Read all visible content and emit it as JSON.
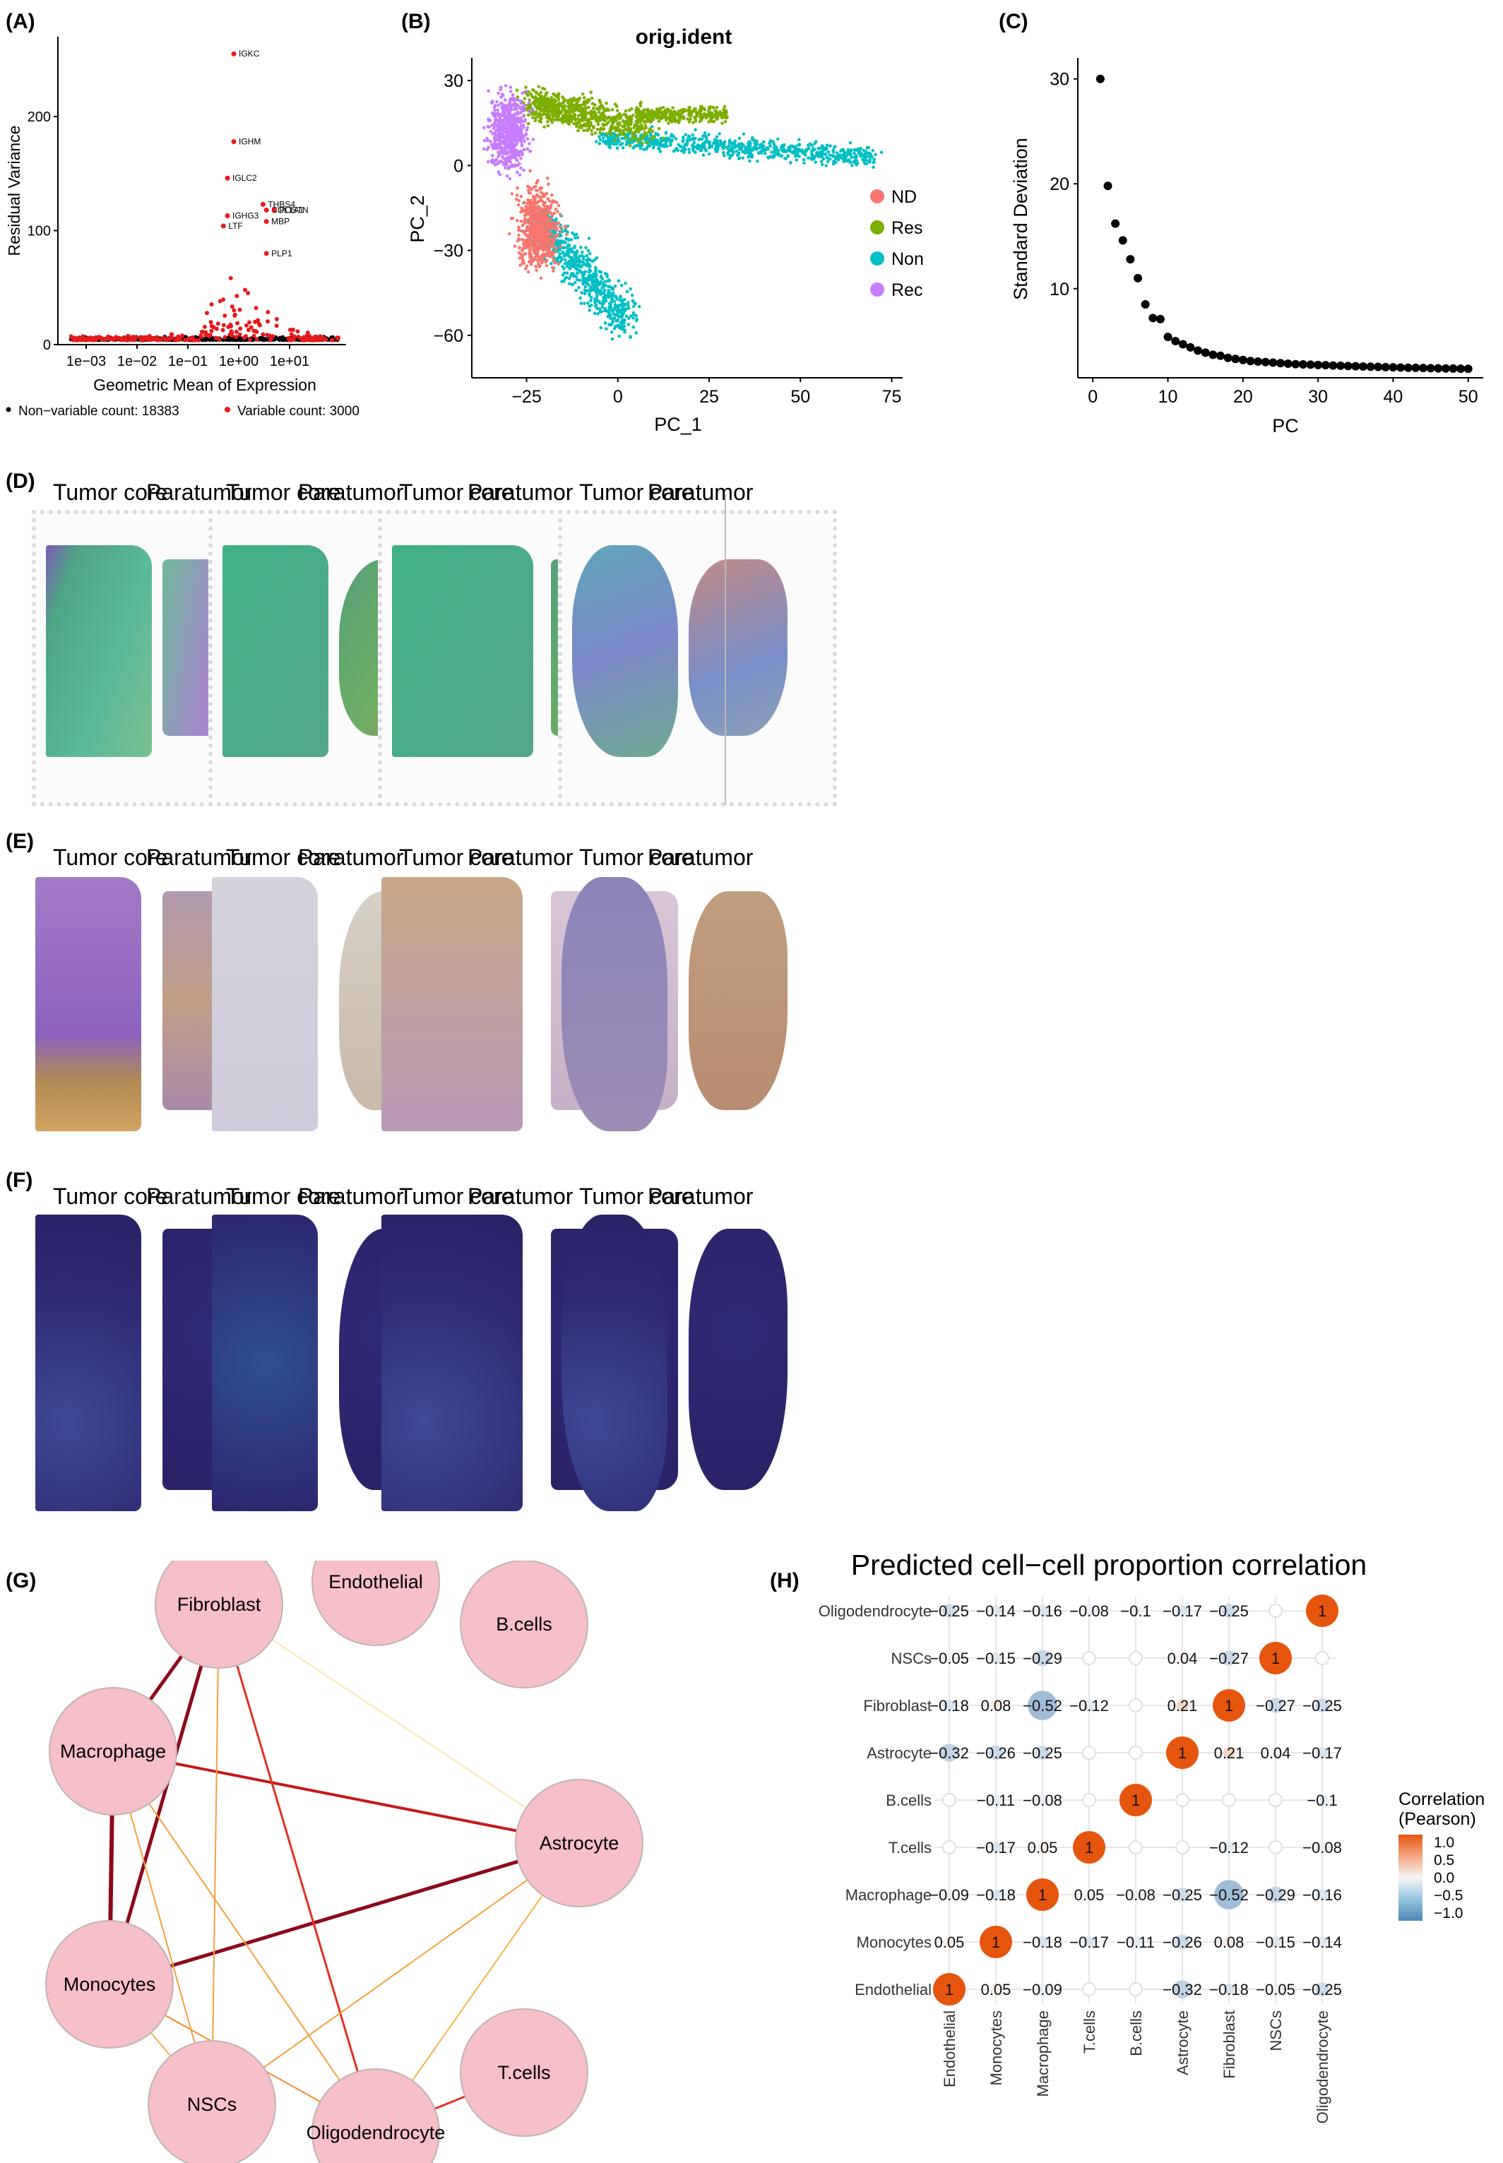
{
  "panels": {
    "A": "(A)",
    "B": "(B)",
    "C": "(C)",
    "D": "(D)",
    "E": "(E)",
    "F": "(F)",
    "G": "(G)",
    "H": "(H)"
  },
  "panelA": {
    "ylabel": "Residual Variance",
    "xlabel": "Geometric Mean of Expression",
    "yticks": [
      "0",
      "100",
      "200"
    ],
    "xticks": [
      "1e−03",
      "1e−02",
      "1e−01",
      "1e+00",
      "1e+01"
    ],
    "legend_nonvar": "Non−variable count: 18383",
    "legend_var": "Variable count: 3000",
    "genes": [
      "IGKC",
      "IGHM",
      "IGLC2",
      "THBS4",
      "IGHG3",
      "COL1A1",
      "POSTN",
      "LTF",
      "MBP",
      "PLP1"
    ]
  },
  "panelB": {
    "title": "orig.ident",
    "xlabel": "PC_1",
    "ylabel": "PC_2",
    "xticks": [
      "−25",
      "0",
      "25",
      "50",
      "75"
    ],
    "yticks": [
      "30",
      "0",
      "−30",
      "−60"
    ],
    "legend": [
      {
        "name": "ND",
        "color": "#F8766D"
      },
      {
        "name": "Res",
        "color": "#7CAE00"
      },
      {
        "name": "Non",
        "color": "#00BFC4"
      },
      {
        "name": "Rec",
        "color": "#C77CFF"
      }
    ]
  },
  "panelC": {
    "xlabel": "PC",
    "ylabel": "Standard Deviation",
    "xticks": [
      "0",
      "10",
      "20",
      "30",
      "40",
      "50"
    ],
    "yticks": [
      "10",
      "20",
      "30"
    ]
  },
  "tissue_labels": {
    "tumor": "Tumor core",
    "para": "Paratumor"
  },
  "panelG": {
    "nodes": [
      "Fibroblast",
      "Endothelial",
      "B.cells",
      "Macrophage",
      "Astrocyte",
      "Monocytes",
      "T.cells",
      "NSCs",
      "Oligodendrocyte"
    ]
  },
  "panelH": {
    "title": "Predicted cell−cell proportion correlation",
    "legend_title_1": "Correlation",
    "legend_title_2": "(Pearson)",
    "legend_ticks": [
      "1.0",
      "0.5",
      "0.0",
      "−0.5",
      "−1.0"
    ]
  },
  "chart_data": [
    {
      "type": "scatter",
      "panel": "A",
      "xlabel": "Geometric Mean of Expression",
      "ylabel": "Residual Variance",
      "xscale": "log",
      "ylim": [
        0,
        260
      ],
      "labeled_points": [
        {
          "gene": "IGKC",
          "x": 0.8,
          "y": 255
        },
        {
          "gene": "IGHM",
          "x": 0.8,
          "y": 178
        },
        {
          "gene": "IGLC2",
          "x": 0.6,
          "y": 146
        },
        {
          "gene": "THBS4",
          "x": 3,
          "y": 123
        },
        {
          "gene": "IGHG3",
          "x": 0.6,
          "y": 113
        },
        {
          "gene": "COL1A1",
          "x": 3.5,
          "y": 118
        },
        {
          "gene": "POSTN",
          "x": 5,
          "y": 118
        },
        {
          "gene": "LTF",
          "x": 0.5,
          "y": 104
        },
        {
          "gene": "MBP",
          "x": 3.5,
          "y": 108
        },
        {
          "gene": "PLP1",
          "x": 3.5,
          "y": 80
        }
      ]
    },
    {
      "type": "scatter",
      "panel": "B",
      "title": "orig.ident",
      "xlabel": "PC_1",
      "ylabel": "PC_2",
      "xlim": [
        -40,
        78
      ],
      "ylim": [
        -75,
        38
      ],
      "series": [
        {
          "name": "ND",
          "center": [
            -22,
            -25
          ]
        },
        {
          "name": "Res",
          "center": [
            -5,
            18
          ]
        },
        {
          "name": "Non",
          "center": [
            40,
            2
          ]
        },
        {
          "name": "Rec",
          "center": [
            -30,
            15
          ]
        }
      ]
    },
    {
      "type": "scatter",
      "panel": "C",
      "xlabel": "PC",
      "ylabel": "Standard Deviation",
      "xlim": [
        0,
        52
      ],
      "ylim": [
        1.5,
        32
      ],
      "x": [
        1,
        2,
        3,
        4,
        5,
        6,
        7,
        8,
        9,
        10,
        11,
        12,
        13,
        14,
        15,
        16,
        17,
        18,
        19,
        20,
        21,
        22,
        23,
        24,
        25,
        26,
        27,
        28,
        29,
        30,
        31,
        32,
        33,
        34,
        35,
        36,
        37,
        38,
        39,
        40,
        41,
        42,
        43,
        44,
        45,
        46,
        47,
        48,
        49,
        50
      ],
      "y": [
        30.0,
        19.8,
        16.2,
        14.6,
        12.8,
        11.0,
        8.5,
        7.2,
        7.1,
        5.4,
        5.0,
        4.7,
        4.4,
        4.1,
        3.9,
        3.7,
        3.6,
        3.4,
        3.3,
        3.2,
        3.1,
        3.05,
        3.0,
        2.95,
        2.9,
        2.85,
        2.8,
        2.78,
        2.75,
        2.72,
        2.7,
        2.67,
        2.65,
        2.62,
        2.6,
        2.58,
        2.56,
        2.54,
        2.52,
        2.5,
        2.48,
        2.46,
        2.45,
        2.43,
        2.42,
        2.4,
        2.39,
        2.38,
        2.37,
        2.36
      ]
    },
    {
      "type": "heatmap",
      "panel": "H",
      "rows": [
        "Oligodendrocyte",
        "NSCs",
        "Fibroblast",
        "Astrocyte",
        "B.cells",
        "T.cells",
        "Macrophage",
        "Monocytes",
        "Endothelial"
      ],
      "columns": [
        "Endothelial",
        "Monocytes",
        "Macrophage",
        "T.cells",
        "B.cells",
        "Astrocyte",
        "Fibroblast",
        "NSCs",
        "Oligodendrocyte"
      ],
      "values": [
        [
          "−0.25",
          "−0.14",
          "−0.16",
          "−0.08",
          "−0.1",
          "−0.17",
          "−0.25",
          "",
          "1"
        ],
        [
          "−0.05",
          "−0.15",
          "−0.29",
          "",
          "",
          "0.04",
          "−0.27",
          "1",
          ""
        ],
        [
          "−0.18",
          "0.08",
          "−0.52",
          "−0.12",
          "",
          "0.21",
          "1",
          "−0.27",
          "−0.25"
        ],
        [
          "−0.32",
          "−0.26",
          "−0.25",
          "",
          "",
          "1",
          "0.21",
          "0.04",
          "−0.17"
        ],
        [
          "",
          "−0.11",
          "−0.08",
          "",
          "1",
          "",
          "",
          "",
          "−0.1"
        ],
        [
          "",
          "−0.17",
          "0.05",
          "1",
          "",
          "",
          "−0.12",
          "",
          "−0.08"
        ],
        [
          "−0.09",
          "−0.18",
          "1",
          "0.05",
          "−0.08",
          "−0.25",
          "−0.52",
          "−0.29",
          "−0.16"
        ],
        [
          "0.05",
          "1",
          "−0.18",
          "−0.17",
          "−0.11",
          "−0.26",
          "0.08",
          "−0.15",
          "−0.14"
        ],
        [
          "1",
          "0.05",
          "−0.09",
          "",
          "",
          "−0.32",
          "−0.18",
          "−0.05",
          "−0.25"
        ]
      ]
    }
  ]
}
